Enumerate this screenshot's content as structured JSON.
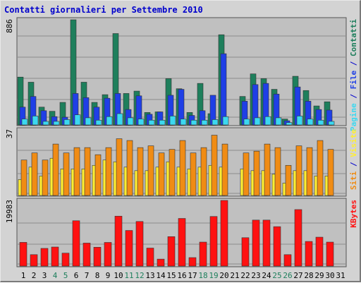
{
  "page_title": "Contatti giornalieri per Settembre 2010",
  "colors": {
    "background": "#d3d3d3",
    "plot_bg": "#c0c0c0",
    "contatti": "#1e7f5c",
    "file": "#1f3fe6",
    "pagine": "#3cd8f0",
    "visite": "#f08c14",
    "siti": "#ffee33",
    "kbytes": "#ff1111",
    "weekend_label": "#1e7f5c",
    "title": "#0000cc"
  },
  "chart_data": [
    {
      "type": "bar",
      "title": "Contatti giornalieri per Settembre 2010",
      "ylabel_max": "886",
      "legend": [
        {
          "label": "Pagine",
          "color": "#3cd8f0"
        },
        {
          "label": "File",
          "color": "#1f3fe6"
        },
        {
          "label": "Contatti",
          "color": "#1e7f5c"
        }
      ],
      "legend_separator": " / ",
      "categories": [
        "1",
        "2",
        "3",
        "4",
        "5",
        "6",
        "7",
        "8",
        "9",
        "10",
        "11",
        "12",
        "13",
        "14",
        "15",
        "16",
        "17",
        "18",
        "19",
        "20",
        "21",
        "22",
        "23",
        "24",
        "25",
        "26",
        "27",
        "28",
        "29",
        "30",
        "31"
      ],
      "weekend_days": [
        "4",
        "5",
        "11",
        "12",
        "18",
        "19",
        "25",
        "26"
      ],
      "ylim": [
        0,
        886
      ],
      "series": [
        {
          "name": "Contatti",
          "values": [
            403,
            360,
            150,
            115,
            190,
            886,
            360,
            190,
            255,
            770,
            265,
            285,
            105,
            110,
            390,
            305,
            105,
            350,
            95,
            760,
            0,
            240,
            430,
            390,
            300,
            50,
            410,
            290,
            160,
            195,
            0
          ]
        },
        {
          "name": "File",
          "values": [
            150,
            240,
            120,
            70,
            65,
            265,
            230,
            150,
            225,
            265,
            130,
            245,
            90,
            110,
            250,
            300,
            80,
            120,
            250,
            600,
            0,
            200,
            340,
            350,
            260,
            35,
            320,
            200,
            130,
            125,
            0
          ]
        },
        {
          "name": "Pagine",
          "values": [
            50,
            75,
            30,
            30,
            45,
            85,
            60,
            40,
            70,
            95,
            60,
            50,
            40,
            40,
            75,
            50,
            40,
            40,
            45,
            70,
            0,
            50,
            60,
            70,
            60,
            20,
            75,
            50,
            40,
            30,
            0
          ]
        }
      ]
    },
    {
      "type": "bar",
      "ylabel_max": "37",
      "legend": [
        {
          "label": "Siti",
          "color": "#f08c14"
        },
        {
          "label": "Visite",
          "color": "#ffee33"
        }
      ],
      "legend_separator": " / ",
      "categories": [
        "1",
        "2",
        "3",
        "4",
        "5",
        "6",
        "7",
        "8",
        "9",
        "10",
        "11",
        "12",
        "13",
        "14",
        "15",
        "16",
        "17",
        "18",
        "19",
        "20",
        "21",
        "22",
        "23",
        "24",
        "25",
        "26",
        "27",
        "28",
        "29",
        "30",
        "31"
      ],
      "ylim": [
        0,
        37
      ],
      "series": [
        {
          "name": "Visite",
          "values": [
            9,
            16,
            11,
            21,
            15,
            15,
            15,
            17,
            20,
            19,
            16,
            14,
            14,
            16,
            19,
            16,
            15,
            16,
            17,
            16,
            0,
            15,
            14,
            14,
            12,
            7,
            14,
            14,
            11,
            11,
            0
          ]
        },
        {
          "name": "Siti",
          "values": [
            20,
            24,
            20,
            29,
            24,
            27,
            27,
            23,
            27,
            32,
            31,
            27,
            28,
            24,
            26,
            31,
            24,
            27,
            34,
            29,
            0,
            24,
            25,
            29,
            27,
            17,
            28,
            27,
            31,
            26,
            0
          ]
        }
      ]
    },
    {
      "type": "bar",
      "ylabel_max": "19983",
      "legend": [
        {
          "label": "KBytes",
          "color": "#ff1111"
        }
      ],
      "categories": [
        "1",
        "2",
        "3",
        "4",
        "5",
        "6",
        "7",
        "8",
        "9",
        "10",
        "11",
        "12",
        "13",
        "14",
        "15",
        "16",
        "17",
        "18",
        "19",
        "20",
        "21",
        "22",
        "23",
        "24",
        "25",
        "26",
        "27",
        "28",
        "29",
        "30",
        "31"
      ],
      "ylim": [
        0,
        19983
      ],
      "series": [
        {
          "name": "KBytes",
          "values": [
            7220,
            3480,
            5380,
            5800,
            3940,
            13800,
            7000,
            5740,
            7200,
            15200,
            10840,
            13580,
            5480,
            2120,
            8960,
            14500,
            2580,
            7300,
            15100,
            19983,
            0,
            8640,
            14000,
            14000,
            12000,
            3480,
            17200,
            7500,
            8800,
            7300,
            0
          ]
        }
      ]
    }
  ]
}
